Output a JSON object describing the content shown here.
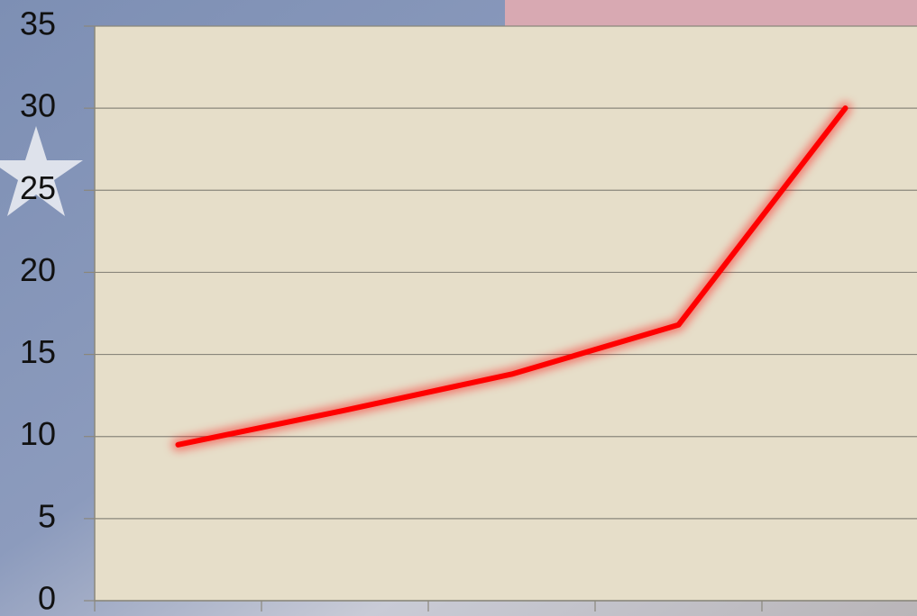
{
  "chart_data": {
    "type": "line",
    "categories": [
      null,
      null,
      null,
      null,
      null
    ],
    "values": [
      9.5,
      11.6,
      13.8,
      16.8,
      30
    ],
    "color": "#ff0000",
    "ylim": [
      0,
      35
    ],
    "yticks": [
      0,
      5,
      10,
      15,
      20,
      25,
      30,
      35
    ],
    "grid": true
  }
}
